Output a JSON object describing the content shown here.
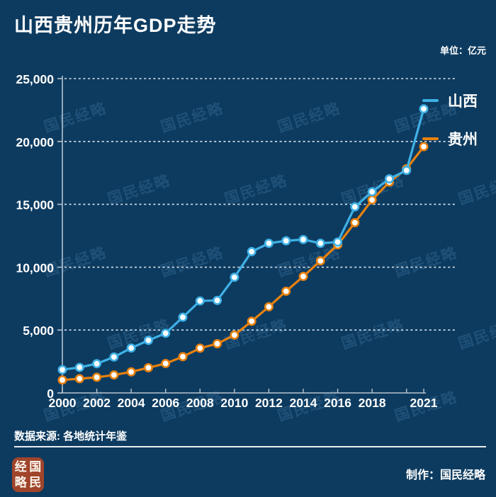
{
  "title": "山西贵州历年GDP走势",
  "unit_label": "单位：亿元",
  "watermark": {
    "text": "国民经略"
  },
  "colors": {
    "background": "#0d3b60",
    "shanxi_line": "#3fb1e6",
    "guizhou_line": "#e8810e",
    "marker_fill": "#ffffff",
    "axis": "#b7c3cd",
    "gridline": "#f2f6f9",
    "text": "#ffffff",
    "logo_background": "#a0452b"
  },
  "chart_data": {
    "type": "line",
    "title": "山西贵州历年GDP走势",
    "unit": "亿元",
    "x": [
      2000,
      2001,
      2002,
      2003,
      2004,
      2005,
      2006,
      2007,
      2008,
      2009,
      2010,
      2011,
      2012,
      2013,
      2014,
      2015,
      2016,
      2017,
      2018,
      2019,
      2020,
      2021
    ],
    "series": [
      {
        "name": "山西",
        "color": "#3fb1e6",
        "values": [
          1846,
          2030,
          2325,
          2855,
          3571,
          4180,
          4747,
          6024,
          7315,
          7358,
          9201,
          11238,
          11900,
          12100,
          12200,
          11900,
          12000,
          14800,
          16000,
          17027,
          17700,
          22590
        ]
      },
      {
        "name": "贵州",
        "color": "#e8810e",
        "values": [
          1030,
          1133,
          1243,
          1426,
          1677,
          2005,
          2339,
          2884,
          3561,
          3913,
          4602,
          5702,
          6852,
          8087,
          9266,
          10503,
          11777,
          13541,
          15353,
          16769,
          17827,
          19586
        ]
      }
    ],
    "ylim": [
      0,
      25000
    ],
    "ytick_step": 5000,
    "ytick_labels": [
      "0",
      "5,000",
      "10,000",
      "15,000",
      "20,000",
      "25,000"
    ],
    "xtick_labels": [
      2000,
      2002,
      2004,
      2006,
      2008,
      2010,
      2012,
      2014,
      2016,
      2018,
      2021
    ],
    "grid": "horizontal-dashed",
    "legend_position": "right",
    "marker": "circle-white-fill"
  },
  "footer": {
    "source": "数据来源: 各地统计年鉴",
    "credit": "制作：国民经略",
    "logo_chars": [
      "经",
      "国",
      "略",
      "民"
    ]
  }
}
